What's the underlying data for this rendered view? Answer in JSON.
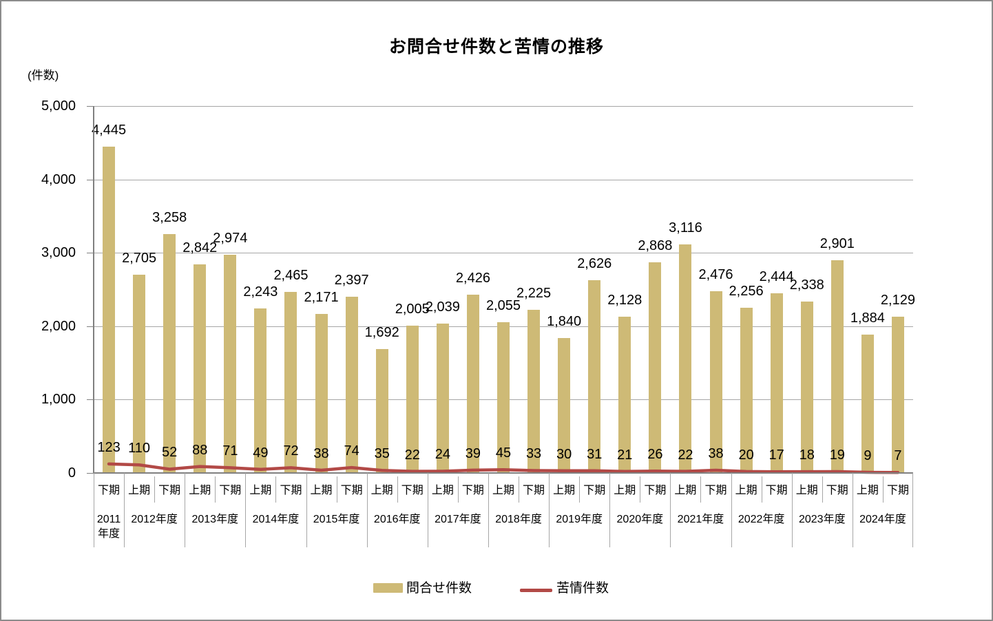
{
  "colors": {
    "bar": "#CEBA76",
    "line": "#B24946",
    "grid": "#A6A6A6",
    "axis": "#808080",
    "separator": "#A6A6A6",
    "text": "#000000",
    "background": "#FFFFFF",
    "frame_border": "#8C8C8C"
  },
  "chart_data": {
    "type": "bar+line",
    "title": "お問合せ件数と苦情の推移",
    "ylabel": "(件数)",
    "xlabel": "",
    "ylim": [
      0,
      5000
    ],
    "y_ticks": [
      0,
      1000,
      2000,
      3000,
      4000,
      5000
    ],
    "grid": true,
    "legend_position": "bottom",
    "periods": [
      "下期",
      "上期",
      "下期",
      "上期",
      "下期",
      "上期",
      "下期",
      "上期",
      "下期",
      "上期",
      "下期",
      "上期",
      "下期",
      "上期",
      "下期",
      "上期",
      "下期",
      "上期",
      "下期",
      "上期",
      "下期",
      "上期",
      "下期",
      "上期",
      "下期",
      "上期",
      "下期"
    ],
    "year_groups": [
      {
        "label": "2011年度",
        "span": 1
      },
      {
        "label": "2012年度",
        "span": 2
      },
      {
        "label": "2013年度",
        "span": 2
      },
      {
        "label": "2014年度",
        "span": 2
      },
      {
        "label": "2015年度",
        "span": 2
      },
      {
        "label": "2016年度",
        "span": 2
      },
      {
        "label": "2017年度",
        "span": 2
      },
      {
        "label": "2018年度",
        "span": 2
      },
      {
        "label": "2019年度",
        "span": 2
      },
      {
        "label": "2020年度",
        "span": 2
      },
      {
        "label": "2021年度",
        "span": 2
      },
      {
        "label": "2022年度",
        "span": 2
      },
      {
        "label": "2023年度",
        "span": 2
      },
      {
        "label": "2024年度",
        "span": 2
      }
    ],
    "series": [
      {
        "name": "問合せ件数",
        "type": "bar",
        "color": "#CEBA76",
        "values": [
          4445,
          2705,
          3258,
          2842,
          2974,
          2243,
          2465,
          2171,
          2397,
          1692,
          2005,
          2039,
          2426,
          2055,
          2225,
          1840,
          2626,
          2128,
          2868,
          3116,
          2476,
          2256,
          2444,
          2338,
          2901,
          1884,
          2129
        ]
      },
      {
        "name": "苦情件数",
        "type": "line",
        "color": "#B24946",
        "values": [
          123,
          110,
          52,
          88,
          71,
          49,
          72,
          38,
          74,
          35,
          22,
          24,
          39,
          45,
          33,
          30,
          31,
          21,
          26,
          22,
          38,
          20,
          17,
          18,
          19,
          9,
          7
        ]
      }
    ]
  }
}
